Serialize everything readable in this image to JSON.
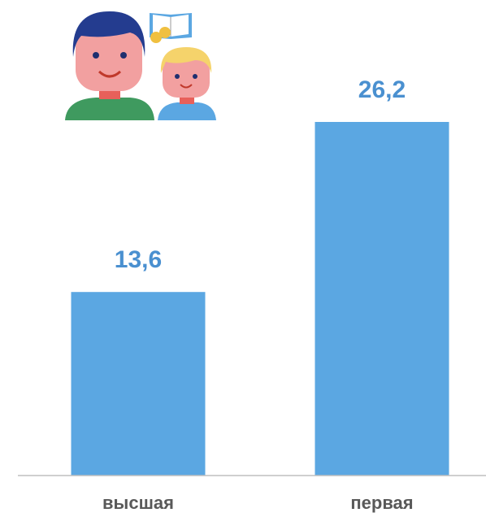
{
  "chart_data": {
    "type": "bar",
    "categories": [
      "высшая",
      "первая"
    ],
    "values": [
      13.6,
      26.2
    ],
    "value_labels": [
      "13,6",
      "26,2"
    ],
    "color": "#5ba7e2"
  }
}
